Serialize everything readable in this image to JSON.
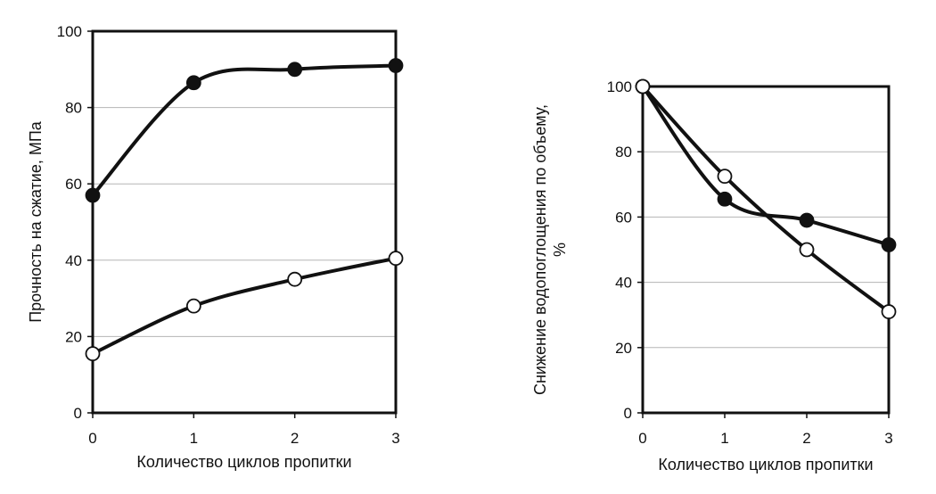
{
  "chart_data": [
    {
      "type": "line",
      "title": "",
      "xlabel": "Количество циклов пропитки",
      "ylabel": "Прочность на сжатие, МПа",
      "ylabel_lines": [
        "Прочность на сжатие, МПа"
      ],
      "x": [
        0,
        1,
        2,
        3
      ],
      "xlim": [
        0,
        3
      ],
      "ylim": [
        0,
        100
      ],
      "xticks": [
        "0",
        "1",
        "2",
        "3"
      ],
      "yticks": [
        "0",
        "20",
        "40",
        "60",
        "80",
        "100"
      ],
      "ytick_values": [
        0,
        20,
        40,
        60,
        80,
        100
      ],
      "grid": true,
      "series": [
        {
          "name": "filled",
          "marker": "filled-circle",
          "values": [
            57,
            86.5,
            90,
            91
          ]
        },
        {
          "name": "open",
          "marker": "open-circle",
          "values": [
            15.5,
            28,
            35,
            40.5
          ]
        }
      ]
    },
    {
      "type": "line",
      "title": "",
      "xlabel": "Количество циклов пропитки",
      "ylabel": "Снижение водопоглощения по объему, %",
      "ylabel_lines": [
        "Снижение водопоглощения по объему,",
        "%"
      ],
      "x": [
        0,
        1,
        2,
        3
      ],
      "xlim": [
        0,
        3
      ],
      "ylim": [
        0,
        100
      ],
      "xticks": [
        "0",
        "1",
        "2",
        "3"
      ],
      "yticks": [
        "0",
        "20",
        "40",
        "60",
        "80",
        "100"
      ],
      "ytick_values": [
        0,
        20,
        40,
        60,
        80,
        100
      ],
      "grid": true,
      "series": [
        {
          "name": "filled",
          "marker": "filled-circle",
          "values": [
            100,
            65.5,
            59,
            51.5
          ]
        },
        {
          "name": "open",
          "marker": "open-circle",
          "values": [
            100,
            72.5,
            50,
            31
          ]
        }
      ]
    }
  ]
}
